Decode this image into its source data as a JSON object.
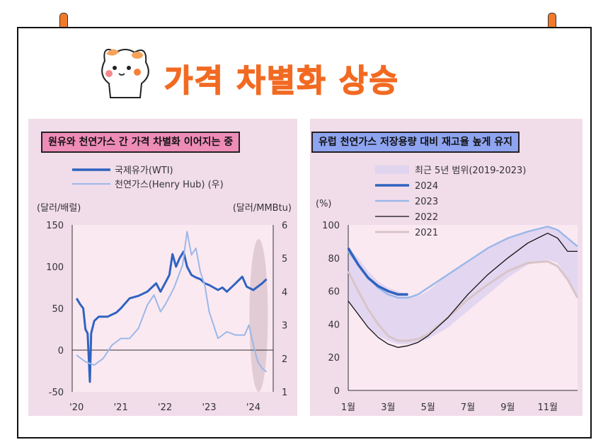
{
  "page_title": "가격 차별화 상승",
  "icons": {
    "mascot": "cat-mascot-icon",
    "pins": "pin-icon"
  },
  "colors": {
    "title": "#f26a22",
    "tag_left": "#ee8cb8",
    "tag_right": "#8ea4f0",
    "panel_bg": "#f1dcea"
  },
  "chart_data": [
    {
      "type": "line",
      "title": "원유와 천연가스 간 가격 차별화 이어지는 중",
      "ylabel_left": "(달러/배럴)",
      "ylabel_right": "(달러/MMBtu)",
      "ylim_left": [
        -50,
        150
      ],
      "ylim_right": [
        1,
        6
      ],
      "yticks_left": [
        "150",
        "100",
        "50",
        "0",
        "-50"
      ],
      "yticks_right": [
        "6",
        "5",
        "4",
        "3",
        "2",
        "1"
      ],
      "xticks": [
        "'20",
        "'21",
        "'22",
        "'23",
        "'24"
      ],
      "series": [
        {
          "name": "국제유가(WTI)",
          "axis": "left",
          "color": "#2f63c0",
          "x": [
            2020.0,
            2020.08,
            2020.15,
            2020.2,
            2020.25,
            2020.3,
            2020.33,
            2020.4,
            2020.5,
            2020.7,
            2020.9,
            2021.0,
            2021.2,
            2021.4,
            2021.6,
            2021.8,
            2021.9,
            2022.0,
            2022.1,
            2022.17,
            2022.25,
            2022.33,
            2022.42,
            2022.5,
            2022.6,
            2022.7,
            2022.8,
            2022.9,
            2023.0,
            2023.2,
            2023.3,
            2023.4,
            2023.6,
            2023.75,
            2023.85,
            2024.0,
            2024.2,
            2024.3
          ],
          "values": [
            62,
            55,
            50,
            25,
            20,
            -38,
            20,
            35,
            40,
            40,
            45,
            50,
            62,
            65,
            70,
            80,
            70,
            80,
            90,
            115,
            100,
            110,
            118,
            100,
            90,
            87,
            85,
            80,
            78,
            72,
            75,
            70,
            80,
            88,
            76,
            72,
            80,
            85
          ]
        },
        {
          "name": "천연가스(Henry Hub) (우)",
          "axis": "right",
          "color": "#9bb8e8",
          "x": [
            2020.0,
            2020.2,
            2020.4,
            2020.6,
            2020.8,
            2021.0,
            2021.2,
            2021.4,
            2021.6,
            2021.75,
            2021.9,
            2022.0,
            2022.2,
            2022.4,
            2022.5,
            2022.6,
            2022.7,
            2022.8,
            2022.9,
            2023.0,
            2023.2,
            2023.4,
            2023.6,
            2023.8,
            2023.9,
            2024.0,
            2024.1,
            2024.2,
            2024.3
          ],
          "values": [
            2.1,
            1.9,
            1.8,
            2.0,
            2.4,
            2.6,
            2.6,
            2.9,
            3.6,
            3.9,
            3.4,
            3.6,
            4.1,
            4.8,
            5.8,
            5.1,
            5.3,
            4.6,
            4.2,
            3.4,
            2.6,
            2.8,
            2.7,
            2.7,
            3.0,
            2.4,
            1.9,
            1.7,
            1.6
          ]
        }
      ],
      "legend": "top-left"
    },
    {
      "type": "line",
      "title": "유럽 천연가스 저장용량 대비 재고율 높게 유지",
      "ylabel": "(%)",
      "ylim": [
        0,
        100
      ],
      "yticks": [
        "100",
        "80",
        "60",
        "40",
        "20",
        "0"
      ],
      "xticks": [
        "1월",
        "3월",
        "5월",
        "7월",
        "9월",
        "11월"
      ],
      "band": {
        "name": "최근 5년 범위(2019-2023)",
        "color": "#e0d4ef",
        "x": [
          1,
          1.5,
          2,
          2.5,
          3,
          3.5,
          4,
          4.5,
          5,
          6,
          7,
          8,
          9,
          10,
          11,
          11.5,
          12,
          12.5
        ],
        "upper": [
          86,
          80,
          72,
          66,
          62,
          60,
          57,
          57,
          60,
          70,
          78,
          86,
          92,
          96,
          99,
          97,
          92,
          87
        ],
        "lower": [
          54,
          46,
          38,
          33,
          30,
          28,
          28,
          29,
          31,
          38,
          48,
          58,
          68,
          76,
          79,
          77,
          67,
          57
        ]
      },
      "series": [
        {
          "name": "2024",
          "color": "#2f63c0",
          "x": [
            1,
            1.5,
            2,
            2.5,
            3,
            3.5,
            4
          ],
          "values": [
            86,
            76,
            68,
            63,
            60,
            58,
            58
          ]
        },
        {
          "name": "2023",
          "color": "#9bb8e8",
          "x": [
            1,
            1.5,
            2,
            2.5,
            3,
            3.5,
            4,
            4.5,
            5,
            6,
            7,
            8,
            9,
            10,
            11,
            11.5,
            12,
            12.5
          ],
          "values": [
            84,
            76,
            68,
            62,
            58,
            56,
            56,
            58,
            62,
            70,
            78,
            86,
            92,
            96,
            99,
            97,
            92,
            87
          ]
        },
        {
          "name": "2022",
          "color": "#111111",
          "x": [
            1,
            1.5,
            2,
            2.5,
            3,
            3.5,
            4,
            4.5,
            5,
            6,
            7,
            8,
            9,
            10,
            11,
            11.5,
            12,
            12.5
          ],
          "values": [
            54,
            46,
            38,
            32,
            28,
            26,
            27,
            29,
            33,
            44,
            58,
            70,
            80,
            89,
            95,
            92,
            84,
            84
          ]
        },
        {
          "name": "2021",
          "color": "#d8c4c8",
          "x": [
            1,
            1.5,
            2,
            2.5,
            3,
            3.5,
            4,
            4.5,
            5,
            6,
            7,
            8,
            9,
            10,
            11,
            11.5,
            12,
            12.5
          ],
          "values": [
            72,
            60,
            49,
            40,
            33,
            30,
            30,
            31,
            34,
            44,
            55,
            64,
            72,
            77,
            78,
            75,
            67,
            56
          ]
        }
      ],
      "legend": "top"
    }
  ]
}
